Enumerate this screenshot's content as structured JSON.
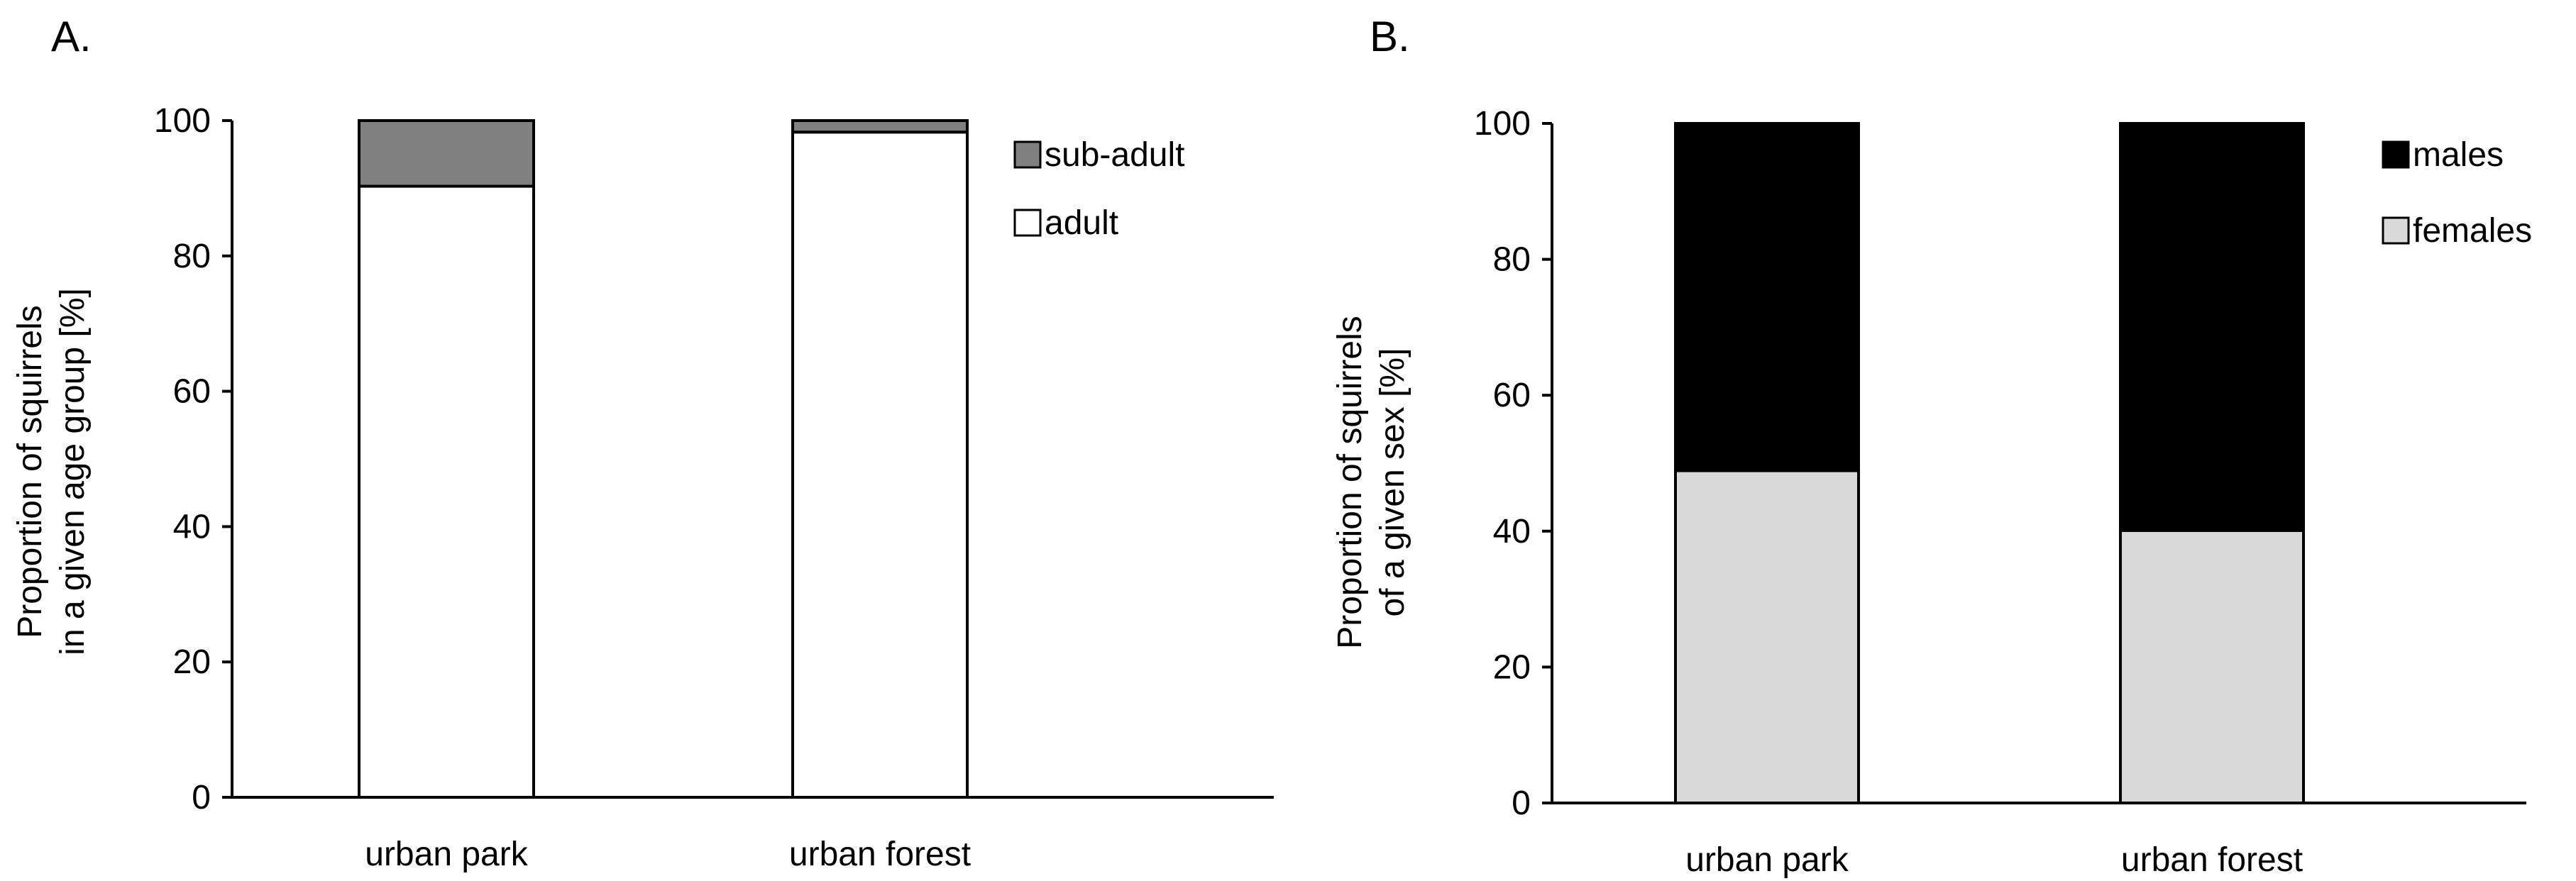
{
  "colors": {
    "sub_adult": "#808080",
    "adult": "#ffffff",
    "males": "#000000",
    "females": "#d9d9d9",
    "axis": "#000000"
  },
  "chart_data": [
    {
      "panel_label": "A.",
      "type": "bar",
      "stacked": true,
      "categories": [
        "urban park",
        "urban forest"
      ],
      "series": [
        {
          "name": "adult",
          "values": [
            90.3,
            98.3
          ]
        },
        {
          "name": "sub-adult",
          "values": [
            9.7,
            1.7
          ]
        }
      ],
      "ylabel_lines": [
        "Proportion of squirrels",
        "in a given age group [%]"
      ],
      "ylim": [
        0,
        100
      ],
      "yticks": [
        0,
        20,
        40,
        60,
        80,
        100
      ],
      "grid": false,
      "legend_position": "top-right",
      "legend_order": [
        "sub-adult",
        "adult"
      ]
    },
    {
      "panel_label": "B.",
      "type": "bar",
      "stacked": true,
      "categories": [
        "urban park",
        "urban forest"
      ],
      "series": [
        {
          "name": "females",
          "values": [
            48.9,
            40.1
          ]
        },
        {
          "name": "males",
          "values": [
            51.1,
            59.9
          ]
        }
      ],
      "ylabel_lines": [
        "Proportion of squirrels",
        "of a given sex [%]"
      ],
      "ylim": [
        0,
        100
      ],
      "yticks": [
        0,
        20,
        40,
        60,
        80,
        100
      ],
      "grid": false,
      "legend_position": "top-right",
      "legend_order": [
        "males",
        "females"
      ]
    }
  ]
}
